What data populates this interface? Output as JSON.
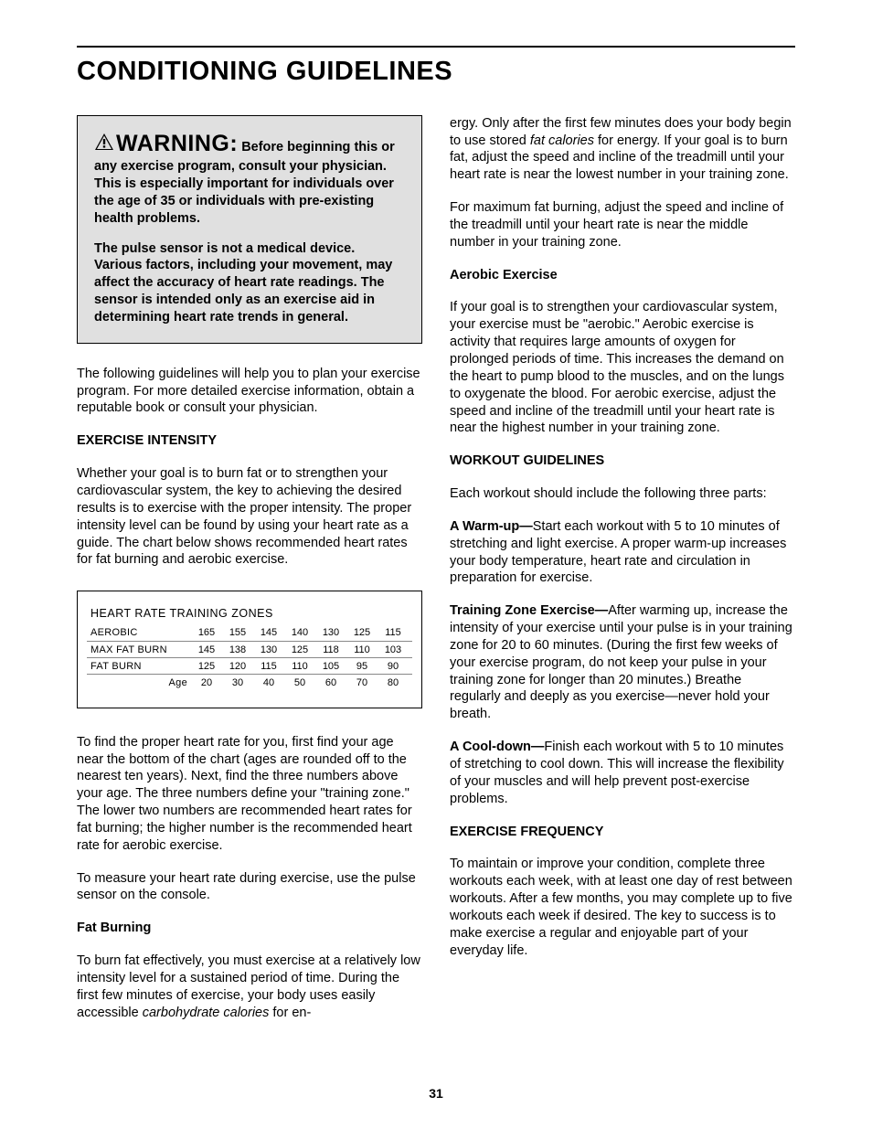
{
  "page_title": "CONDITIONING GUIDELINES",
  "page_number": "31",
  "warning": {
    "word": "WARNING:",
    "p1": "Before beginning this or any exercise program, consult your physician. This is especially important for individuals over the age of 35 or individuals with pre-existing health problems.",
    "p2": "The pulse sensor is not a medical device. Various factors, including your movement, may affect the accuracy of heart rate readings. The sensor is intended only as an exercise aid in determining heart rate trends in general."
  },
  "left": {
    "intro": "The following guidelines will help you to plan your exercise program. For more detailed exercise information, obtain a reputable book or consult your physician.",
    "intensity_head": "EXERCISE INTENSITY",
    "intensity_body": "Whether your goal is to burn fat or to strengthen your cardiovascular system, the key to achieving the desired results is to exercise with the proper intensity. The proper intensity level can be found by using your heart rate as a guide. The chart below shows recommended heart rates for fat burning and aerobic exercise.",
    "chart_after1": "To find the proper heart rate for you, first find your age near the bottom of the chart (ages are rounded off to the nearest ten years). Next, find the three numbers above your age. The three numbers define your \"training zone.\" The lower two numbers are recommended heart rates for fat burning; the higher number is the recommended heart rate for aerobic exercise.",
    "chart_after2": "To measure your heart rate during exercise, use the pulse sensor on the console.",
    "fatburn_head": "Fat Burning",
    "fatburn_p_a": "To burn fat effectively, you must exercise at a relatively low intensity level for a sustained period of time. During the first few minutes of exercise, your body uses easily accessible ",
    "fatburn_italic": "carbohydrate calories",
    "fatburn_p_b": " for en-"
  },
  "right": {
    "cont_a": "ergy. Only after the first few minutes does your body begin to use stored ",
    "cont_italic": "fat calories",
    "cont_b": " for energy. If your goal is to burn fat, adjust the speed and incline of the treadmill until your heart rate is near the lowest number in your training zone.",
    "maxfat": "For maximum fat burning, adjust the speed and incline of the treadmill until your heart rate is near the middle number in your training zone.",
    "aerobic_head": "Aerobic Exercise",
    "aerobic_body": "If your goal is to strengthen your cardiovascular system, your exercise must be \"aerobic.\" Aerobic exercise is activity that requires large amounts of oxygen for prolonged periods of time. This increases the demand on the heart to pump blood to the muscles, and on the lungs to oxygenate the blood. For aerobic exercise, adjust the speed and incline of the treadmill until your heart rate is near the highest number in your training zone.",
    "workout_head": "WORKOUT GUIDELINES",
    "workout_intro": "Each workout should include the following three parts:",
    "warmup_label": "A Warm-up—",
    "warmup_body": "Start each workout with 5 to 10 minutes of stretching and light exercise. A proper warm-up increases your body temperature, heart rate and circulation in preparation for exercise.",
    "tze_label": "Training Zone Exercise—",
    "tze_body": "After warming up, increase the intensity of your exercise until your pulse is in your training zone for 20 to 60 minutes. (During the first few weeks of your exercise program, do not keep your pulse in your training zone for longer than 20 minutes.) Breathe regularly and deeply as you exercise—never hold your breath.",
    "cool_label": "A Cool-down—",
    "cool_body": "Finish each workout with 5 to 10 minutes of stretching to cool down. This will increase the flexibility of your muscles and will help prevent post-exercise problems.",
    "freq_head": "EXERCISE FREQUENCY",
    "freq_body": "To maintain or improve your condition, complete three workouts each week, with at least one day of rest between workouts. After a few months, you may complete up to five workouts each week if desired. The key to success is to make exercise a regular and enjoyable part of your everyday life."
  },
  "chart": {
    "title": "HEART RATE TRAINING ZONES",
    "row_labels": [
      "AEROBIC",
      "MAX FAT BURN",
      "FAT BURN"
    ],
    "age_label": "Age",
    "rows": [
      [
        "165",
        "155",
        "145",
        "140",
        "130",
        "125",
        "115"
      ],
      [
        "145",
        "138",
        "130",
        "125",
        "118",
        "110",
        "103"
      ],
      [
        "125",
        "120",
        "115",
        "110",
        "105",
        "95",
        "90"
      ]
    ],
    "ages": [
      "20",
      "30",
      "40",
      "50",
      "60",
      "70",
      "80"
    ]
  }
}
